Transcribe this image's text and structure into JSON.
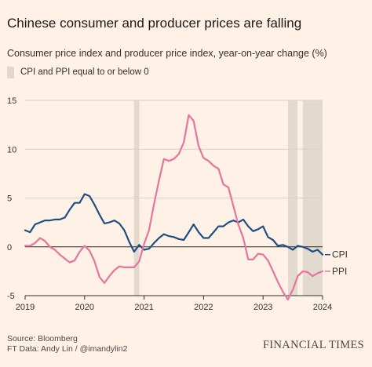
{
  "title": "Chinese consumer and producer prices are falling",
  "subtitle": "Consumer price index and producer price index, year-on-year change (%)",
  "legend": {
    "shade_label": "CPI and PPI equal to or below 0"
  },
  "source": "Source: Bloomberg",
  "credit": "FT Data: Andy Lin / @imandylin2",
  "brand": "FINANCIAL TIMES",
  "colors": {
    "cpi": "#1f4f82",
    "ppi": "#e5759b",
    "shade": "#e2d9cf",
    "background": "#fff1e5"
  },
  "chart_data": {
    "type": "line",
    "xlabel": "",
    "ylabel": "",
    "xlim": [
      2019,
      2024
    ],
    "ylim": [
      -5,
      15
    ],
    "x_ticks": [
      "2019",
      "2020",
      "2021",
      "2022",
      "2023",
      "2024"
    ],
    "y_ticks": [
      "15",
      "10",
      "5",
      "0",
      "-5"
    ],
    "grid": true,
    "shaded_periods": [
      [
        2020.83,
        2020.92
      ],
      [
        2023.42,
        2023.58
      ],
      [
        2023.67,
        2024.0
      ]
    ],
    "series": [
      {
        "name": "CPI",
        "x": [
          2019.0,
          2019.083,
          2019.167,
          2019.25,
          2019.333,
          2019.417,
          2019.5,
          2019.583,
          2019.667,
          2019.75,
          2019.833,
          2019.917,
          2020.0,
          2020.083,
          2020.167,
          2020.25,
          2020.333,
          2020.417,
          2020.5,
          2020.583,
          2020.667,
          2020.75,
          2020.833,
          2020.917,
          2021.0,
          2021.083,
          2021.167,
          2021.25,
          2021.333,
          2021.417,
          2021.5,
          2021.583,
          2021.667,
          2021.75,
          2021.833,
          2021.917,
          2022.0,
          2022.083,
          2022.167,
          2022.25,
          2022.333,
          2022.417,
          2022.5,
          2022.583,
          2022.667,
          2022.75,
          2022.833,
          2022.917,
          2023.0,
          2023.083,
          2023.167,
          2023.25,
          2023.333,
          2023.417,
          2023.5,
          2023.583,
          2023.667,
          2023.75,
          2023.833,
          2023.917,
          2024.0
        ],
        "values": [
          1.7,
          1.5,
          2.3,
          2.5,
          2.7,
          2.7,
          2.8,
          2.8,
          3.0,
          3.8,
          4.5,
          4.5,
          5.4,
          5.2,
          4.3,
          3.3,
          2.4,
          2.5,
          2.7,
          2.4,
          1.7,
          0.5,
          -0.5,
          0.2,
          -0.3,
          -0.2,
          0.4,
          0.9,
          1.3,
          1.1,
          1.0,
          0.8,
          0.7,
          1.5,
          2.3,
          1.5,
          0.9,
          0.9,
          1.5,
          2.1,
          2.1,
          2.5,
          2.7,
          2.5,
          2.8,
          2.1,
          1.6,
          1.8,
          2.1,
          1.0,
          0.7,
          0.1,
          0.2,
          0.0,
          -0.3,
          0.1,
          0.0,
          -0.2,
          -0.5,
          -0.3,
          -0.8
        ]
      },
      {
        "name": "PPI",
        "x": [
          2019.0,
          2019.083,
          2019.167,
          2019.25,
          2019.333,
          2019.417,
          2019.5,
          2019.583,
          2019.667,
          2019.75,
          2019.833,
          2019.917,
          2020.0,
          2020.083,
          2020.167,
          2020.25,
          2020.333,
          2020.417,
          2020.5,
          2020.583,
          2020.667,
          2020.75,
          2020.833,
          2020.917,
          2021.0,
          2021.083,
          2021.167,
          2021.25,
          2021.333,
          2021.417,
          2021.5,
          2021.583,
          2021.667,
          2021.75,
          2021.833,
          2021.917,
          2022.0,
          2022.083,
          2022.167,
          2022.25,
          2022.333,
          2022.417,
          2022.5,
          2022.583,
          2022.667,
          2022.75,
          2022.833,
          2022.917,
          2023.0,
          2023.083,
          2023.167,
          2023.25,
          2023.333,
          2023.417,
          2023.5,
          2023.583,
          2023.667,
          2023.75,
          2023.833,
          2023.917,
          2024.0
        ],
        "values": [
          0.1,
          0.1,
          0.4,
          0.9,
          0.6,
          0.0,
          -0.3,
          -0.8,
          -1.2,
          -1.6,
          -1.4,
          -0.5,
          0.1,
          -0.4,
          -1.5,
          -3.1,
          -3.7,
          -3.0,
          -2.4,
          -2.0,
          -2.1,
          -2.1,
          -2.1,
          -1.5,
          0.3,
          1.7,
          4.4,
          6.8,
          9.0,
          8.8,
          9.0,
          9.5,
          10.7,
          13.5,
          12.9,
          10.3,
          9.1,
          8.8,
          8.3,
          8.0,
          6.4,
          6.1,
          4.2,
          2.3,
          0.9,
          -1.3,
          -1.3,
          -0.7,
          -0.8,
          -1.4,
          -2.5,
          -3.6,
          -4.6,
          -5.4,
          -4.4,
          -3.0,
          -2.5,
          -2.6,
          -3.0,
          -2.7,
          -2.5
        ]
      }
    ]
  }
}
